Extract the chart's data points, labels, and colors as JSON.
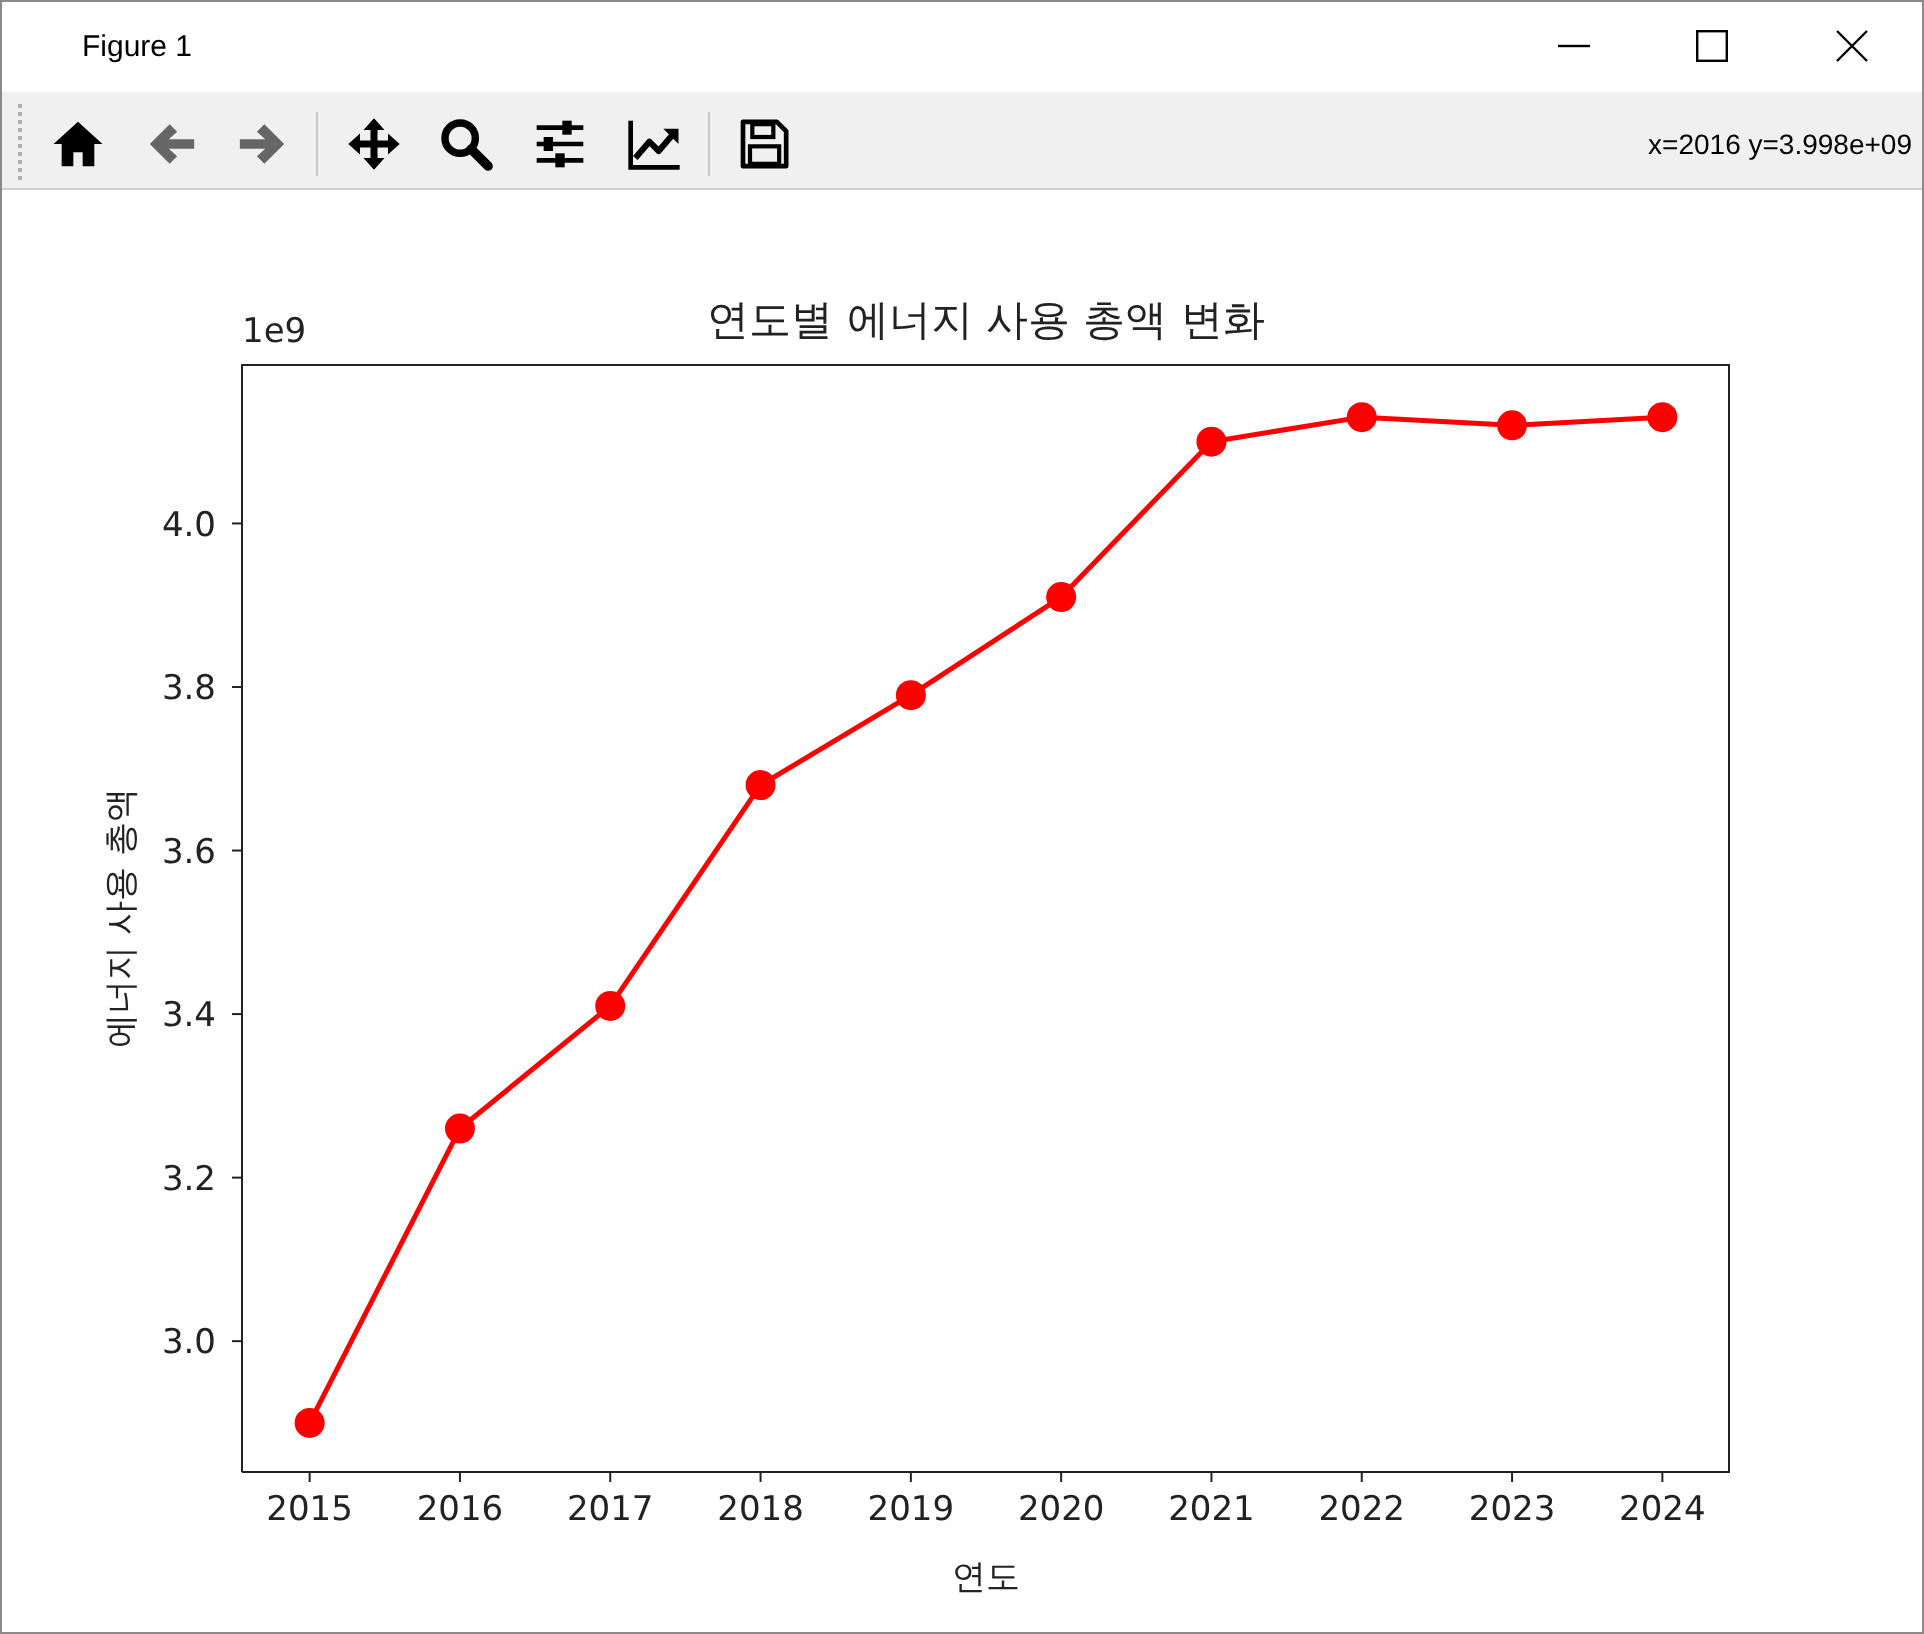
{
  "chart_data": {
    "type": "line",
    "title": "연도별 에너지 사용 총액 변화",
    "xlabel": "연도",
    "ylabel": "에너지 사용 총액",
    "x": [
      2015,
      2016,
      2017,
      2018,
      2019,
      2020,
      2021,
      2022,
      2023,
      2024
    ],
    "values": [
      2.9,
      3.26,
      3.41,
      3.68,
      3.79,
      3.91,
      4.1,
      4.13,
      4.12,
      4.13
    ],
    "color": "#ff0000",
    "marker": "circle",
    "line_style": "solid",
    "xlim": [
      2014.55,
      2024.45
    ],
    "xticks": [
      2015,
      2016,
      2017,
      2018,
      2019,
      2020,
      2021,
      2022,
      2023,
      2024
    ],
    "ylim": [
      2.84,
      4.195
    ],
    "yticks": [
      {
        "value": 3,
        "label": "3.0"
      },
      3.2,
      3.4,
      3.6,
      3.8,
      {
        "value": 4,
        "label": "4.0"
      }
    ],
    "annotations": [
      "1e9",
      "Figure 1",
      "x=2016 y=3.998e+09"
    ]
  }
}
